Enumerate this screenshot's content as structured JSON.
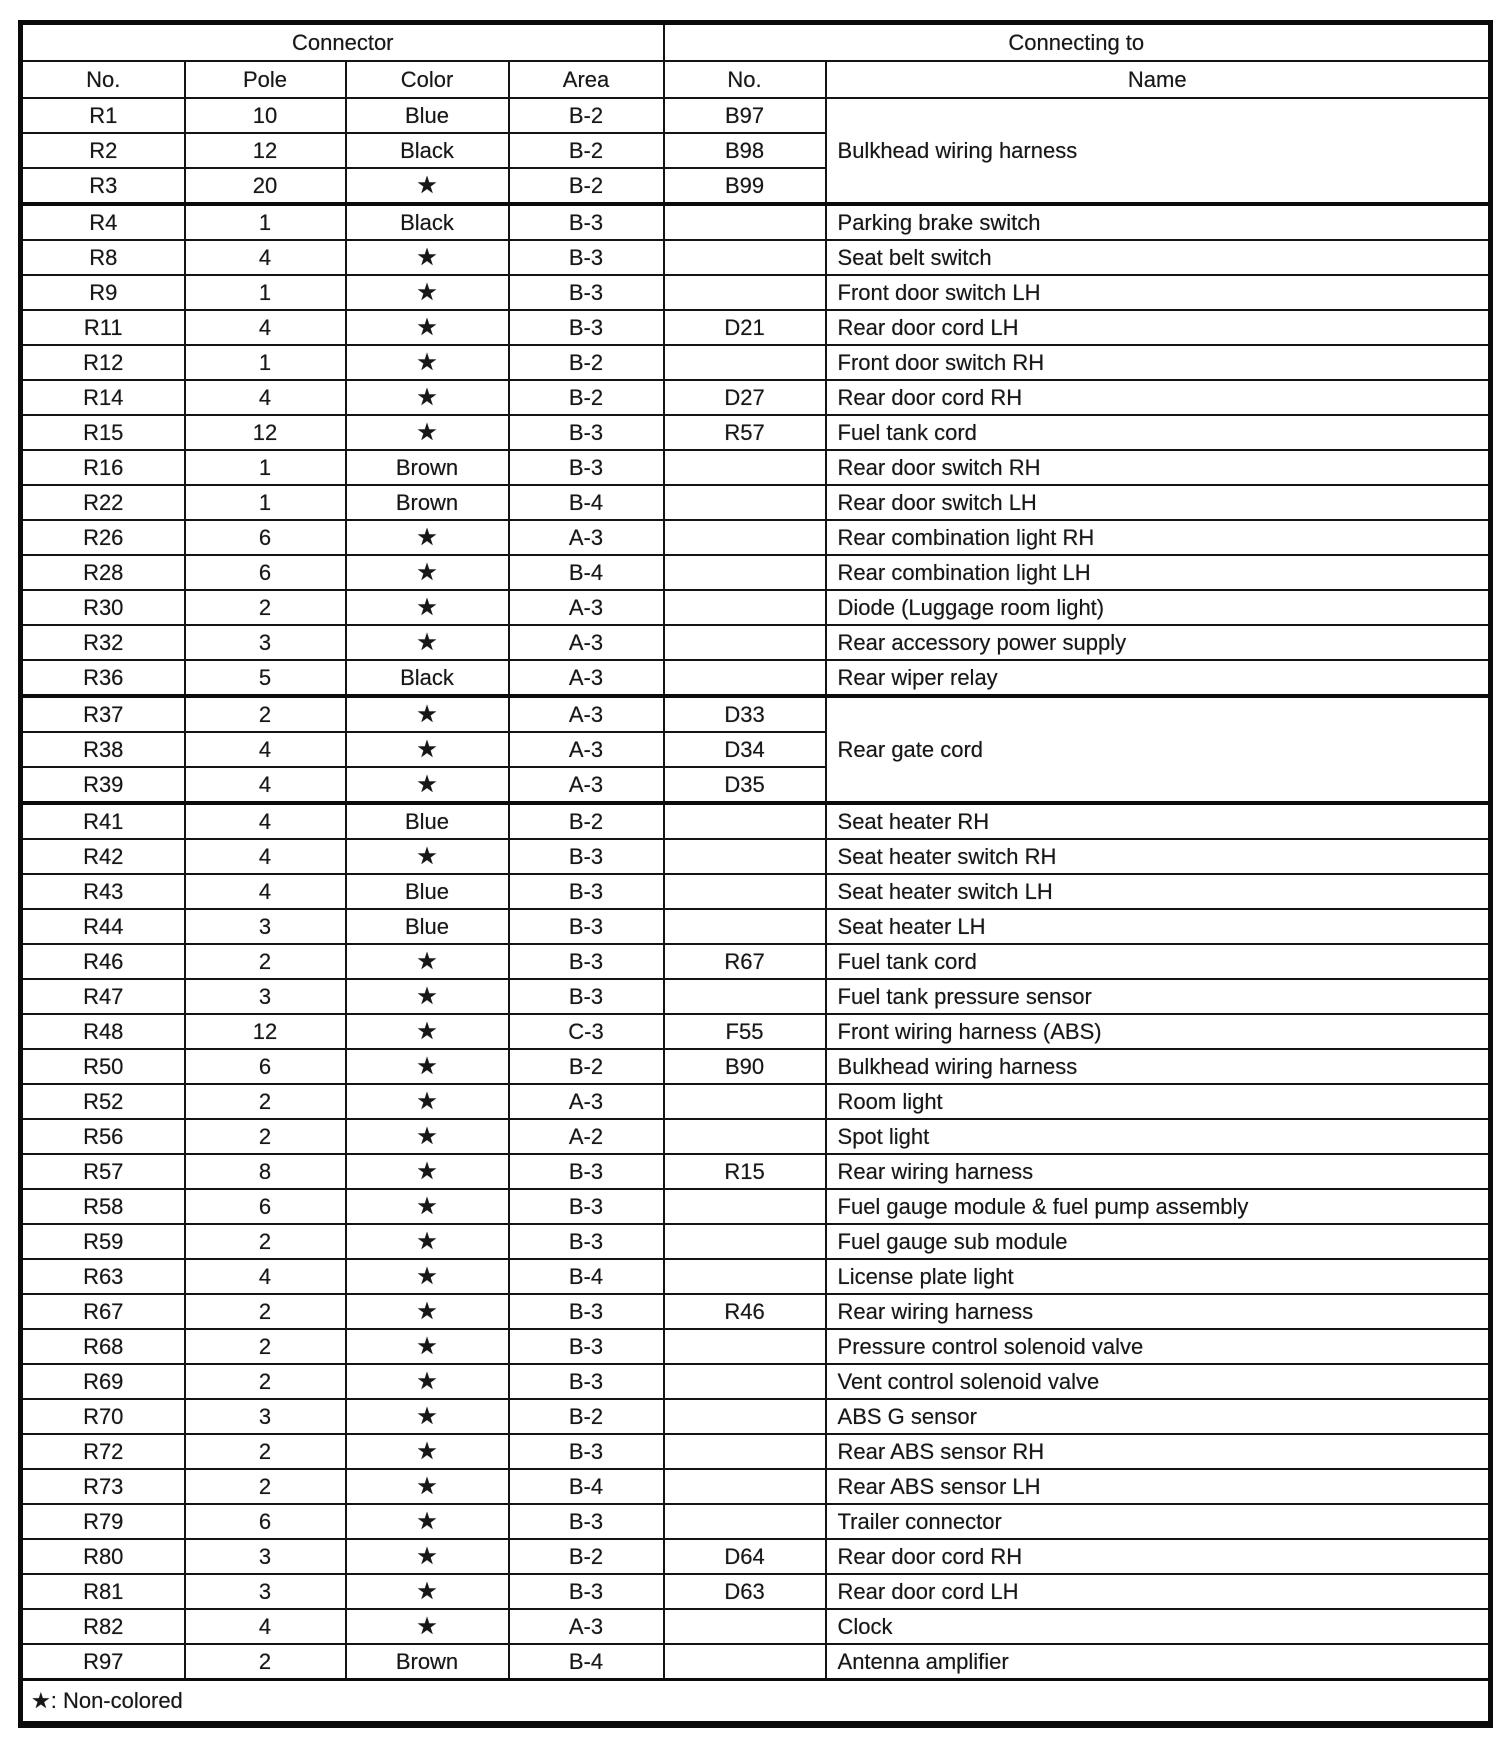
{
  "header": {
    "connector_group": "Connector",
    "connecting_group": "Connecting to",
    "columns": {
      "no": "No.",
      "pole": "Pole",
      "color": "Color",
      "area": "Area",
      "to_no": "No.",
      "name": "Name"
    }
  },
  "symbols": {
    "star": "★"
  },
  "footnote": "★: Non-colored",
  "rows": [
    {
      "no": "R1",
      "pole": "10",
      "color": "Blue",
      "area": "B-2",
      "to_no": "B97",
      "name": "Bulkhead wiring harness",
      "name_rowspan": 3
    },
    {
      "no": "R2",
      "pole": "12",
      "color": "Black",
      "area": "B-2",
      "to_no": "B98",
      "name": null
    },
    {
      "no": "R3",
      "pole": "20",
      "color": "★",
      "area": "B-2",
      "to_no": "B99",
      "name": null
    },
    {
      "no": "R4",
      "pole": "1",
      "color": "Black",
      "area": "B-3",
      "to_no": "",
      "name": "Parking brake switch",
      "thick_top": true
    },
    {
      "no": "R8",
      "pole": "4",
      "color": "★",
      "area": "B-3",
      "to_no": "",
      "name": "Seat belt switch"
    },
    {
      "no": "R9",
      "pole": "1",
      "color": "★",
      "area": "B-3",
      "to_no": "",
      "name": "Front door switch LH"
    },
    {
      "no": "R11",
      "pole": "4",
      "color": "★",
      "area": "B-3",
      "to_no": "D21",
      "name": "Rear door cord LH"
    },
    {
      "no": "R12",
      "pole": "1",
      "color": "★",
      "area": "B-2",
      "to_no": "",
      "name": "Front door switch RH"
    },
    {
      "no": "R14",
      "pole": "4",
      "color": "★",
      "area": "B-2",
      "to_no": "D27",
      "name": "Rear door cord RH"
    },
    {
      "no": "R15",
      "pole": "12",
      "color": "★",
      "area": "B-3",
      "to_no": "R57",
      "name": "Fuel tank cord"
    },
    {
      "no": "R16",
      "pole": "1",
      "color": "Brown",
      "area": "B-3",
      "to_no": "",
      "name": "Rear door switch RH"
    },
    {
      "no": "R22",
      "pole": "1",
      "color": "Brown",
      "area": "B-4",
      "to_no": "",
      "name": "Rear door switch LH"
    },
    {
      "no": "R26",
      "pole": "6",
      "color": "★",
      "area": "A-3",
      "to_no": "",
      "name": "Rear combination light RH"
    },
    {
      "no": "R28",
      "pole": "6",
      "color": "★",
      "area": "B-4",
      "to_no": "",
      "name": "Rear combination light LH"
    },
    {
      "no": "R30",
      "pole": "2",
      "color": "★",
      "area": "A-3",
      "to_no": "",
      "name": "Diode (Luggage room light)"
    },
    {
      "no": "R32",
      "pole": "3",
      "color": "★",
      "area": "A-3",
      "to_no": "",
      "name": "Rear accessory power supply"
    },
    {
      "no": "R36",
      "pole": "5",
      "color": "Black",
      "area": "A-3",
      "to_no": "",
      "name": "Rear wiper relay"
    },
    {
      "no": "R37",
      "pole": "2",
      "color": "★",
      "area": "A-3",
      "to_no": "D33",
      "name": "Rear gate cord",
      "name_rowspan": 3,
      "thick_top": true
    },
    {
      "no": "R38",
      "pole": "4",
      "color": "★",
      "area": "A-3",
      "to_no": "D34",
      "name": null
    },
    {
      "no": "R39",
      "pole": "4",
      "color": "★",
      "area": "A-3",
      "to_no": "D35",
      "name": null
    },
    {
      "no": "R41",
      "pole": "4",
      "color": "Blue",
      "area": "B-2",
      "to_no": "",
      "name": "Seat heater RH",
      "thick_top": true
    },
    {
      "no": "R42",
      "pole": "4",
      "color": "★",
      "area": "B-3",
      "to_no": "",
      "name": "Seat heater switch RH"
    },
    {
      "no": "R43",
      "pole": "4",
      "color": "Blue",
      "area": "B-3",
      "to_no": "",
      "name": "Seat heater switch LH"
    },
    {
      "no": "R44",
      "pole": "3",
      "color": "Blue",
      "area": "B-3",
      "to_no": "",
      "name": "Seat heater LH"
    },
    {
      "no": "R46",
      "pole": "2",
      "color": "★",
      "area": "B-3",
      "to_no": "R67",
      "name": "Fuel tank cord"
    },
    {
      "no": "R47",
      "pole": "3",
      "color": "★",
      "area": "B-3",
      "to_no": "",
      "name": "Fuel tank pressure sensor"
    },
    {
      "no": "R48",
      "pole": "12",
      "color": "★",
      "area": "C-3",
      "to_no": "F55",
      "name": "Front wiring harness (ABS)"
    },
    {
      "no": "R50",
      "pole": "6",
      "color": "★",
      "area": "B-2",
      "to_no": "B90",
      "name": "Bulkhead wiring harness"
    },
    {
      "no": "R52",
      "pole": "2",
      "color": "★",
      "area": "A-3",
      "to_no": "",
      "name": "Room light"
    },
    {
      "no": "R56",
      "pole": "2",
      "color": "★",
      "area": "A-2",
      "to_no": "",
      "name": "Spot light"
    },
    {
      "no": "R57",
      "pole": "8",
      "color": "★",
      "area": "B-3",
      "to_no": "R15",
      "name": "Rear wiring harness"
    },
    {
      "no": "R58",
      "pole": "6",
      "color": "★",
      "area": "B-3",
      "to_no": "",
      "name": "Fuel gauge module & fuel pump assembly"
    },
    {
      "no": "R59",
      "pole": "2",
      "color": "★",
      "area": "B-3",
      "to_no": "",
      "name": "Fuel gauge sub module"
    },
    {
      "no": "R63",
      "pole": "4",
      "color": "★",
      "area": "B-4",
      "to_no": "",
      "name": "License plate light"
    },
    {
      "no": "R67",
      "pole": "2",
      "color": "★",
      "area": "B-3",
      "to_no": "R46",
      "name": "Rear wiring harness"
    },
    {
      "no": "R68",
      "pole": "2",
      "color": "★",
      "area": "B-3",
      "to_no": "",
      "name": "Pressure control solenoid valve"
    },
    {
      "no": "R69",
      "pole": "2",
      "color": "★",
      "area": "B-3",
      "to_no": "",
      "name": "Vent control solenoid valve"
    },
    {
      "no": "R70",
      "pole": "3",
      "color": "★",
      "area": "B-2",
      "to_no": "",
      "name": "ABS G sensor"
    },
    {
      "no": "R72",
      "pole": "2",
      "color": "★",
      "area": "B-3",
      "to_no": "",
      "name": "Rear ABS sensor RH"
    },
    {
      "no": "R73",
      "pole": "2",
      "color": "★",
      "area": "B-4",
      "to_no": "",
      "name": "Rear ABS sensor LH"
    },
    {
      "no": "R79",
      "pole": "6",
      "color": "★",
      "area": "B-3",
      "to_no": "",
      "name": "Trailer connector"
    },
    {
      "no": "R80",
      "pole": "3",
      "color": "★",
      "area": "B-2",
      "to_no": "D64",
      "name": "Rear door cord RH"
    },
    {
      "no": "R81",
      "pole": "3",
      "color": "★",
      "area": "B-3",
      "to_no": "D63",
      "name": "Rear door cord LH"
    },
    {
      "no": "R82",
      "pole": "4",
      "color": "★",
      "area": "A-3",
      "to_no": "",
      "name": "Clock"
    },
    {
      "no": "R97",
      "pole": "2",
      "color": "Brown",
      "area": "B-4",
      "to_no": "",
      "name": "Antenna amplifier"
    }
  ]
}
